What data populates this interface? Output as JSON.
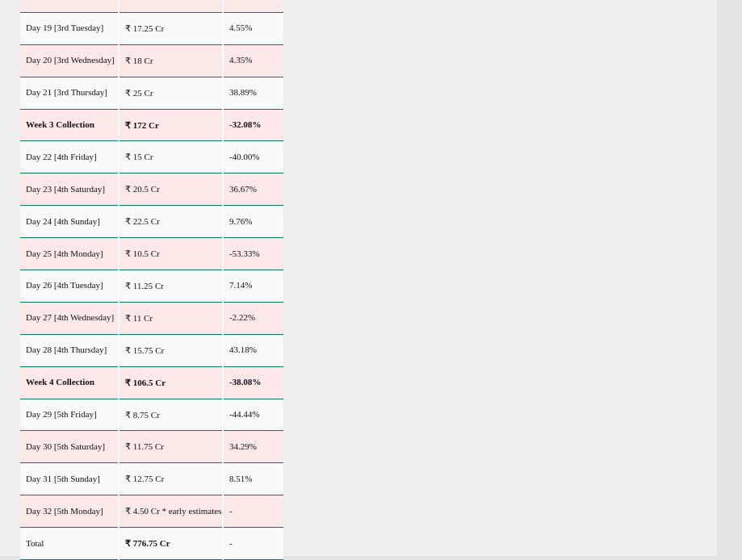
{
  "table": {
    "rows": [
      [
        "Day 19 [3rd Tuesday]",
        "₹ 17.25 Cr",
        "4.55%"
      ],
      [
        "Day 20 [3rd Wednesday]",
        "₹ 18 Cr",
        "4.35%"
      ],
      [
        "Day 21 [3rd Thursday]",
        "₹ 25 Cr",
        "38.89%"
      ],
      [
        "Week 3 Collection",
        "₹ 172 Cr",
        "-32.08%"
      ],
      [
        "Day 22 [4th Friday]",
        "₹ 15 Cr",
        "-40.00%"
      ],
      [
        "Day 23 [4th Saturday]",
        "₹ 20.5 Cr",
        "36.67%"
      ],
      [
        "Day 24 [4th Sunday]",
        "₹ 22.5 Cr",
        "9.76%"
      ],
      [
        "Day 25 [4th Monday]",
        "₹ 10.5 Cr",
        "-53.33%"
      ],
      [
        "Day 26 [4th Tuesday]",
        "₹ 11.25 Cr",
        "7.14%"
      ],
      [
        "Day 27 [4th Wednesday]",
        "₹ 11 Cr",
        "-2.22%"
      ],
      [
        "Day 28 [4th Thursday]",
        "₹ 15.75 Cr",
        "43.18%"
      ],
      [
        "Week 4 Collection",
        "₹ 106.5 Cr",
        "-38.08%"
      ],
      [
        "Day 29 [5th Friday]",
        "₹ 8.75 Cr",
        "-44.44%"
      ],
      [
        "Day 30 [5th Saturday]",
        "₹ 11.75 Cr",
        "34.29%"
      ],
      [
        "Day 31 [5th Sunday]",
        "₹ 12.75 Cr",
        "8.51%"
      ],
      [
        "Day 32 [5th Monday]",
        "₹ 4.50 Cr * early estimates",
        "-"
      ],
      [
        "Total",
        "₹ 776.75 Cr",
        "-"
      ]
    ]
  }
}
